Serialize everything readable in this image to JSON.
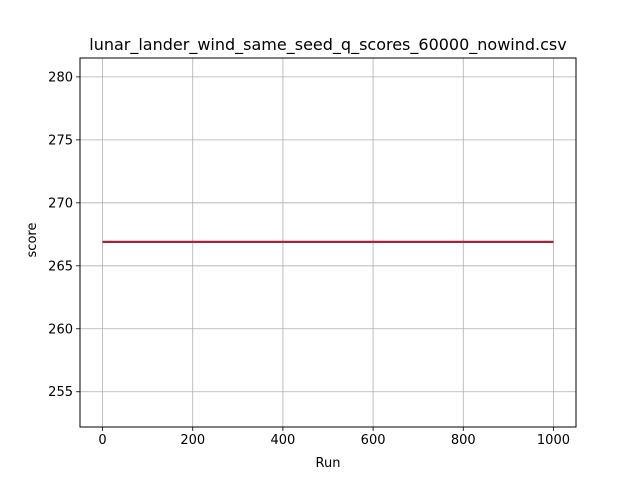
{
  "chart_data": {
    "type": "line",
    "title": "lunar_lander_wind_same_seed_q_scores_60000_nowind.csv",
    "xlabel": "Run",
    "ylabel": "score",
    "xlim": [
      -50,
      1050
    ],
    "ylim": [
      252.2,
      281.5
    ],
    "x_ticks": [
      0,
      200,
      400,
      600,
      800,
      1000
    ],
    "y_ticks": [
      255,
      260,
      265,
      270,
      275,
      280
    ],
    "grid": true,
    "legend": "none",
    "series": [
      {
        "color": "#a8213a",
        "x": [
          0,
          1000
        ],
        "y": [
          266.9,
          266.9
        ]
      }
    ]
  },
  "colors": {
    "axes": "#000000",
    "grid": "#b0b0b0",
    "background": "#ffffff"
  }
}
